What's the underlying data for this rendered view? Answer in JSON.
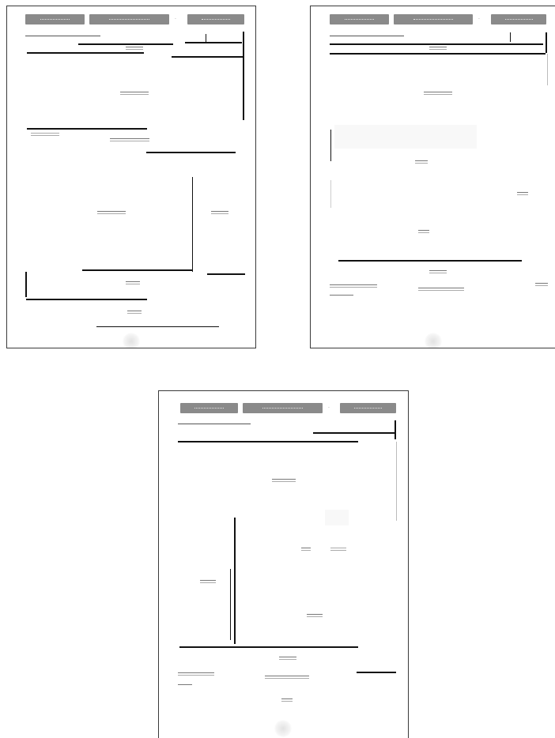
{
  "pages": [
    {
      "id": "page-1",
      "tabs": [
        "tab-1",
        "tab-2",
        "tab-3"
      ]
    },
    {
      "id": "page-2",
      "tabs": [
        "tab-1",
        "tab-2",
        "tab-3"
      ]
    },
    {
      "id": "page-3",
      "tabs": [
        "tab-1",
        "tab-2",
        "tab-3"
      ]
    }
  ],
  "colors": {
    "page_background": "#ffffff",
    "tab_fill": "#8a8a8a",
    "rule_line": "#111111",
    "page_border": "#3a3a3a"
  }
}
